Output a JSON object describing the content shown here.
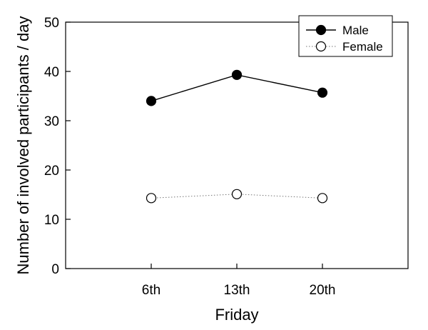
{
  "chart_data": {
    "type": "line",
    "xlabel": "Friday",
    "ylabel": "Number of involved participants / day",
    "categories": [
      "6th",
      "13th",
      "20th"
    ],
    "ylim": [
      0,
      50
    ],
    "yticks": [
      0,
      10,
      20,
      30,
      40,
      50
    ],
    "grid": false,
    "legend_position": "top-right",
    "series": [
      {
        "name": "Male",
        "values": [
          34.0,
          39.3,
          35.7
        ],
        "marker": "filled-circle",
        "line_style": "solid",
        "color": "#000000"
      },
      {
        "name": "Female",
        "values": [
          14.3,
          15.1,
          14.3
        ],
        "marker": "open-circle",
        "line_style": "dotted",
        "color": "#000000"
      }
    ]
  }
}
